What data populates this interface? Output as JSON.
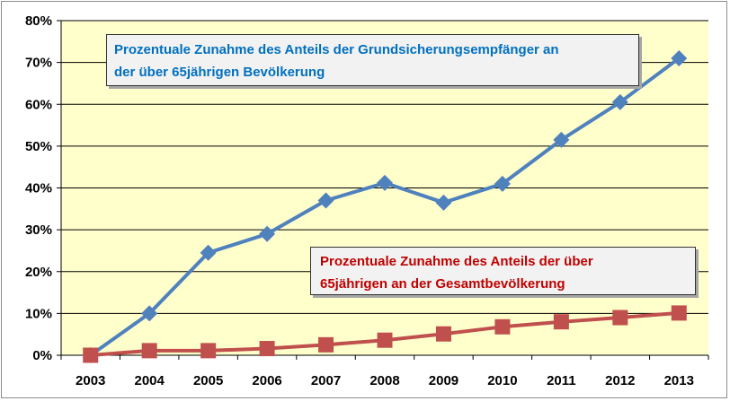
{
  "chart_data": {
    "type": "line",
    "categories": [
      "2003",
      "2004",
      "2005",
      "2006",
      "2007",
      "2008",
      "2009",
      "2010",
      "2011",
      "2012",
      "2013"
    ],
    "ylim": [
      0,
      80
    ],
    "yticks": [
      0,
      10,
      20,
      30,
      40,
      50,
      60,
      70,
      80
    ],
    "ytick_labels": [
      "0%",
      "10%",
      "20%",
      "30%",
      "40%",
      "50%",
      "60%",
      "70%",
      "80%"
    ],
    "grid": true,
    "plot_background": "#ffffcc",
    "gridline_color": "#000000",
    "series": [
      {
        "color": "#4f81bd",
        "marker": "diamond",
        "values": [
          0,
          10,
          24.5,
          29,
          37,
          41.2,
          36.5,
          41,
          51.5,
          60.5,
          71
        ]
      },
      {
        "color": "#c0504d",
        "marker": "square",
        "values": [
          0,
          1.1,
          1.1,
          1.6,
          2.5,
          3.6,
          5.1,
          6.8,
          8,
          9,
          10.1
        ]
      }
    ],
    "annotations": [
      {
        "lines": [
          "Prozentuale Zunahme  des Anteils der  Grundsicherungsempfänger  an",
          "der über 65jährigen  Bevölkerung"
        ],
        "color": "#0070c0"
      },
      {
        "lines": [
          "Prozentuale Zunahme  des Anteils der über",
          "65jährigen an der Gesamtbevölkerung"
        ],
        "color": "#c00000"
      }
    ]
  }
}
